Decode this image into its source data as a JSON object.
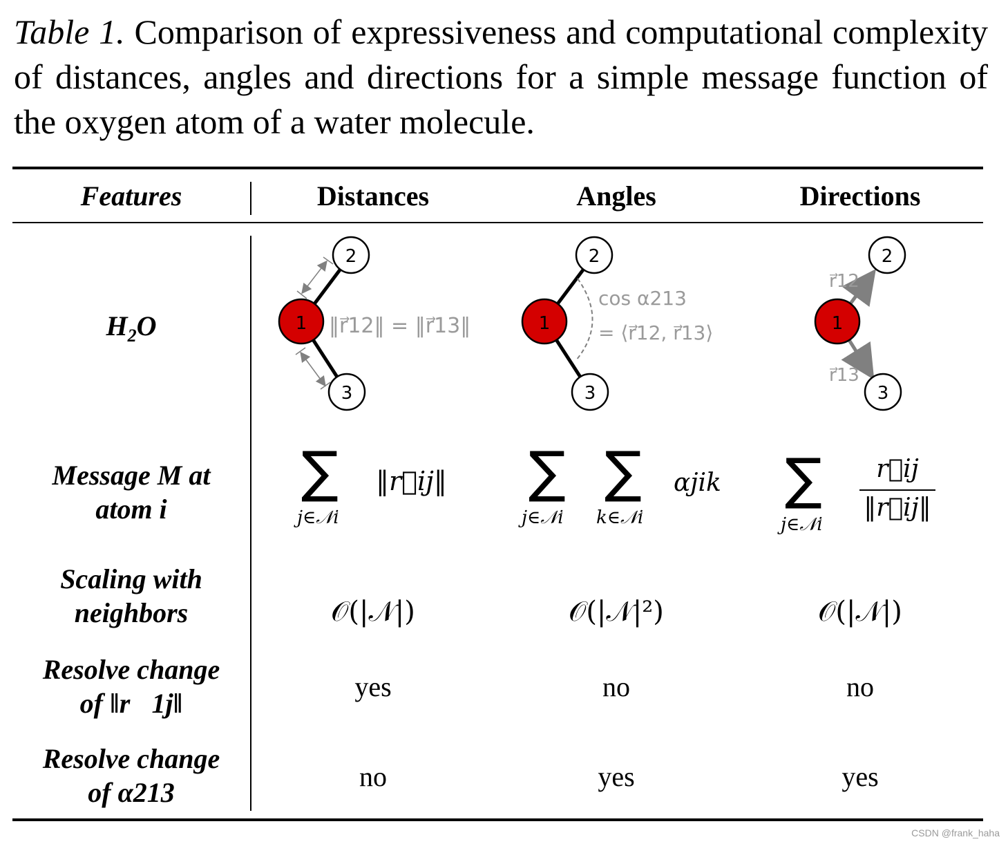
{
  "caption": {
    "label": "Table 1.",
    "text": "Comparison of expressiveness and computational complexity of distances, angles and directions for a simple message function of the oxygen atom of a water molecule."
  },
  "table": {
    "columns": [
      "Features",
      "Distances",
      "Angles",
      "Directions"
    ],
    "rows": {
      "h2o": {
        "label_main": "H",
        "label_sub": "2",
        "label_end": "O",
        "atoms": {
          "center": "1",
          "top": "2",
          "bottom": "3"
        },
        "distances_formula": "‖r⃗12‖ = ‖r⃗13‖",
        "angles_formula_1": "cos α213",
        "angles_formula_2": "= ⟨r⃗12, r⃗13⟩",
        "directions_r12": "r⃗12",
        "directions_r13": "r⃗13"
      },
      "message": {
        "label_line1": "Message M at",
        "label_line2": "atom i",
        "sum_symbol": "∑",
        "distances_sub": "j∈𝒩i",
        "distances_term": "‖r⃗ij‖",
        "angles_sub1": "j∈𝒩i",
        "angles_sub2": "k∈𝒩i",
        "angles_term": "αjik",
        "directions_sub": "j∈𝒩i",
        "directions_num": "r⃗ij",
        "directions_den": "‖r⃗ij‖"
      },
      "scaling": {
        "label_line1": "Scaling with",
        "label_line2": "neighbors",
        "distances": "𝒪(|𝒩|)",
        "angles": "𝒪(|𝒩|²)",
        "directions": "𝒪(|𝒩|)"
      },
      "resolve_r": {
        "label_line1": "Resolve change",
        "label_line2": "of ‖r⃗1j‖",
        "distances": "yes",
        "angles": "no",
        "directions": "no"
      },
      "resolve_alpha": {
        "label_line1": "Resolve change",
        "label_line2": "of α213",
        "distances": "no",
        "angles": "yes",
        "directions": "yes"
      }
    }
  },
  "colors": {
    "atom_oxygen": "#d40000",
    "annotation_gray": "#9a9a9a",
    "arrow_gray": "#808080"
  },
  "watermark": "CSDN @frank_haha"
}
